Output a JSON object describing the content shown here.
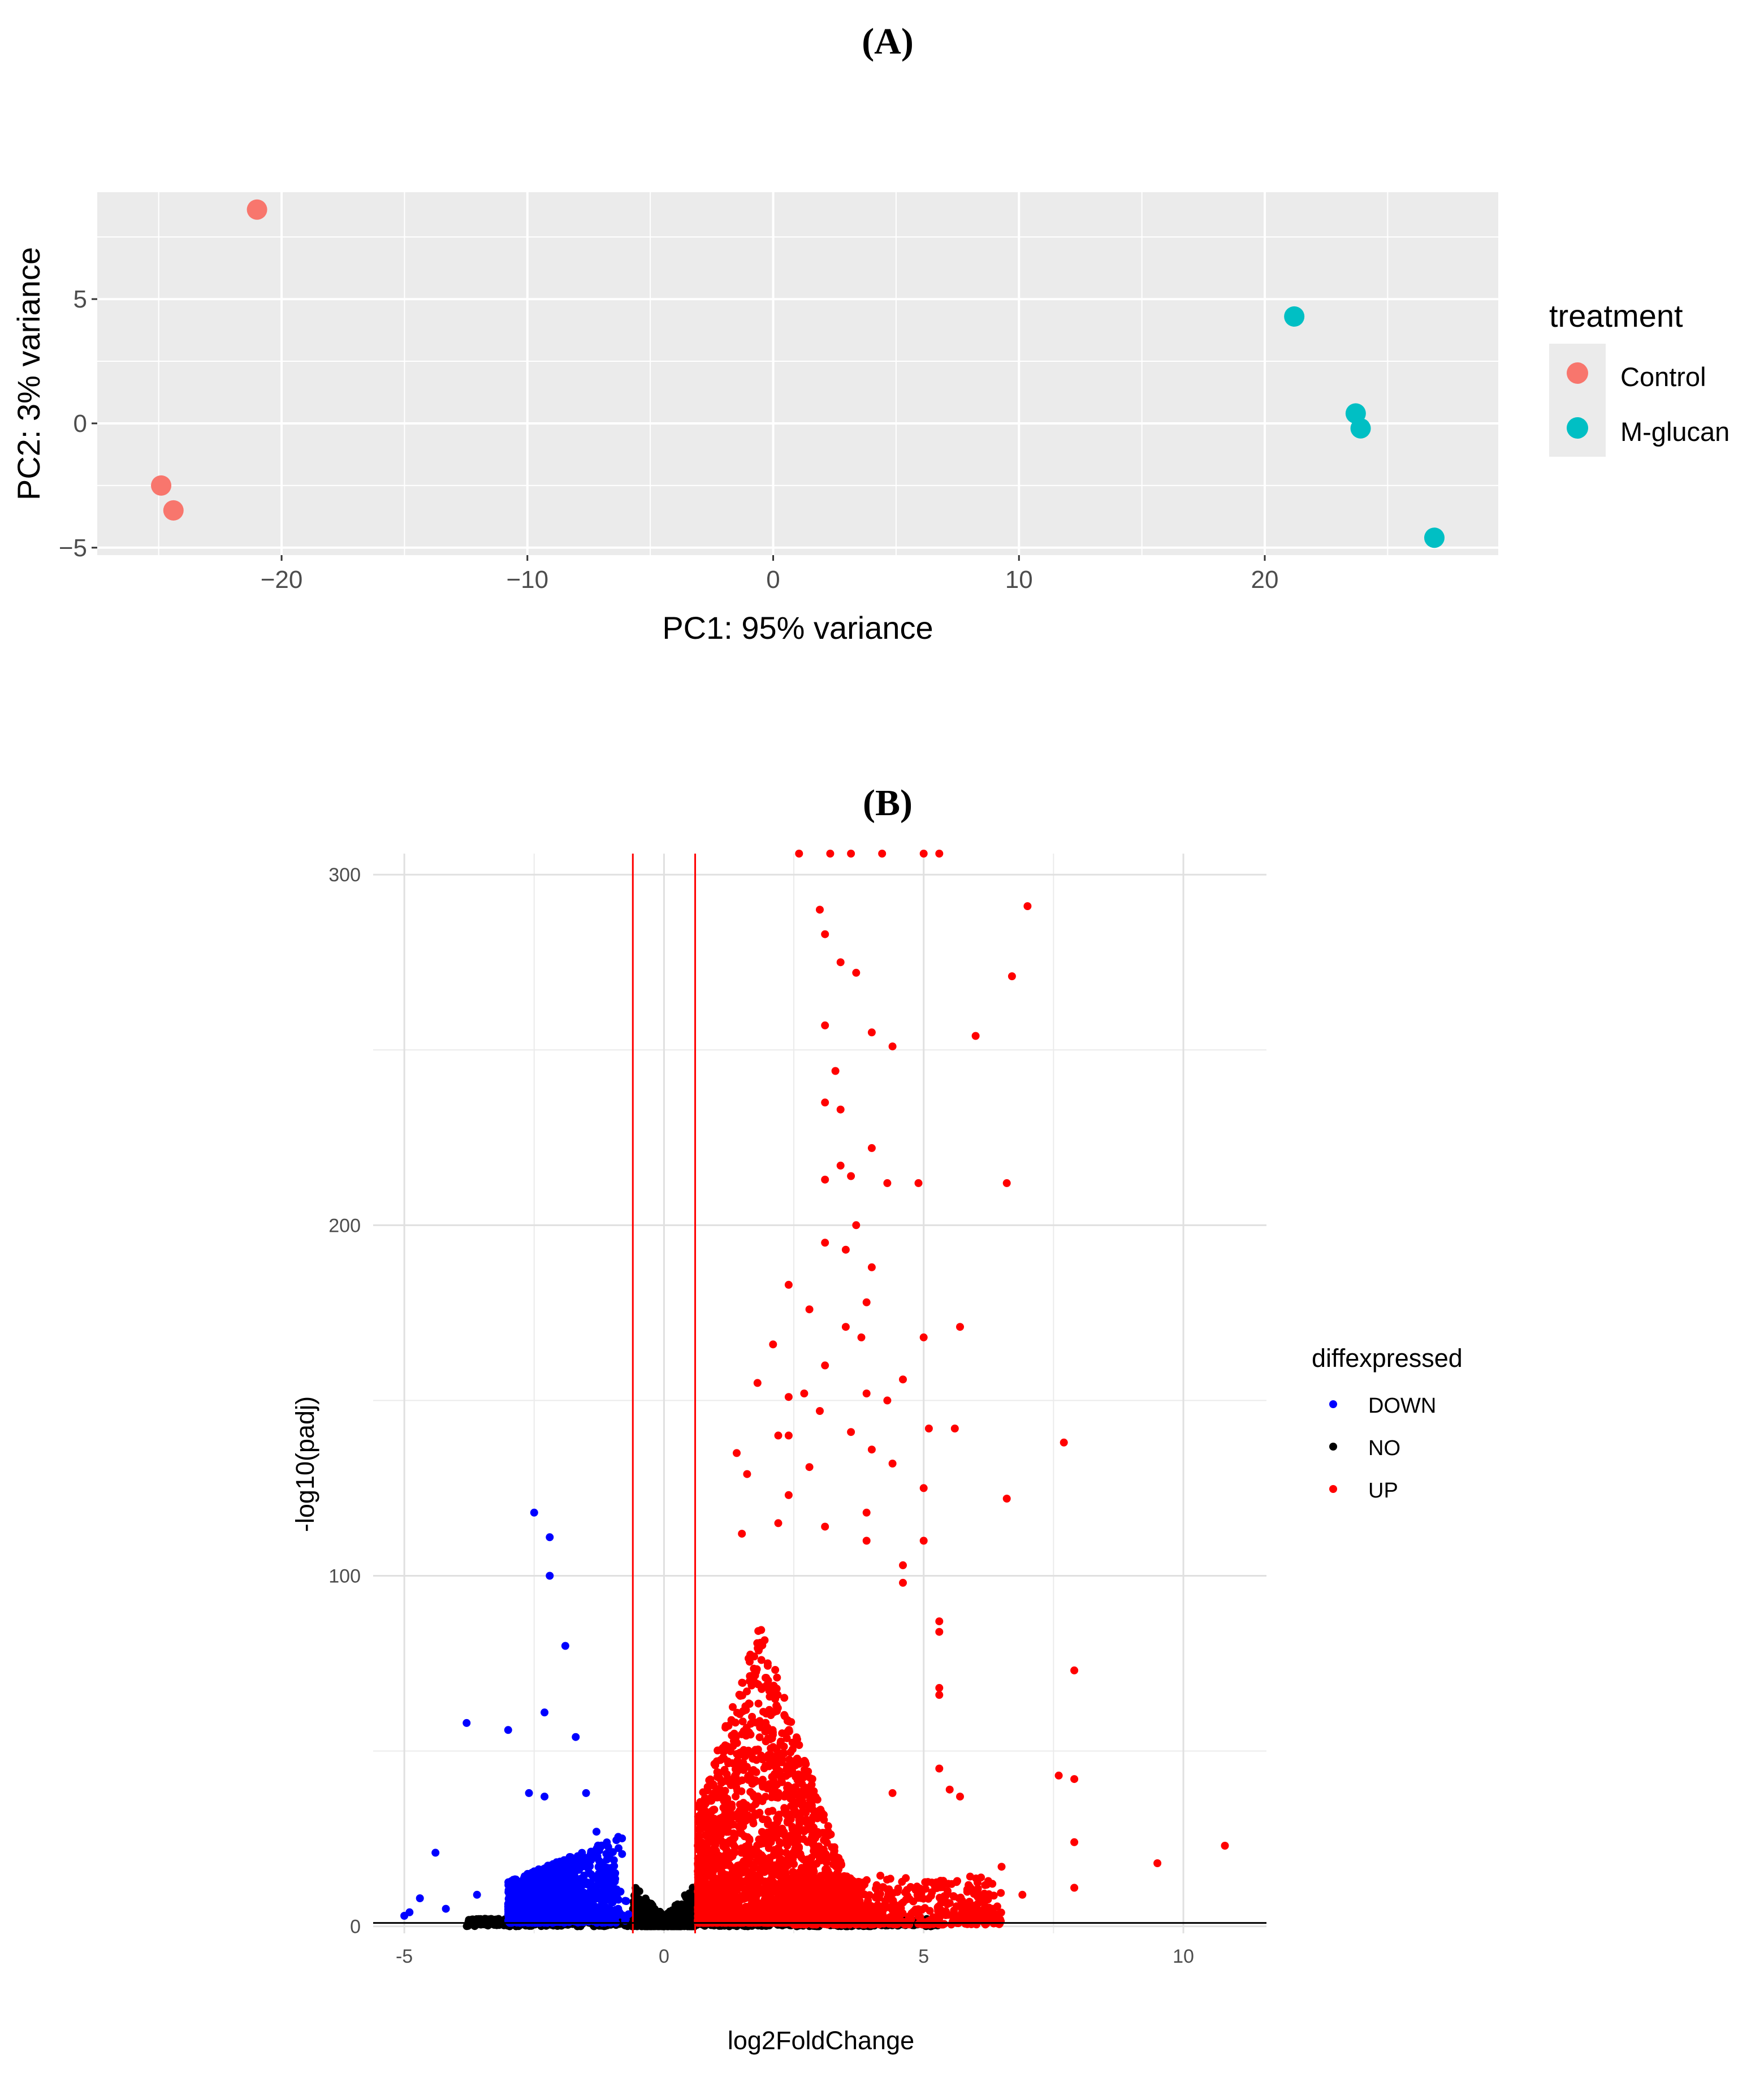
{
  "panels": {
    "a_label": "(A)",
    "b_label": "(B)"
  },
  "chart_data": [
    {
      "type": "scatter",
      "title": "",
      "xlabel": "PC1: 95% variance",
      "ylabel": "PC2: 3% variance",
      "xlim": [
        -27.5,
        29.5
      ],
      "ylim": [
        -5.3,
        9.3
      ],
      "xticks": [
        -20,
        -10,
        0,
        10,
        20
      ],
      "yticks": [
        -5,
        0,
        5
      ],
      "grid": true,
      "background": "#ebebeb",
      "legend": {
        "title": "treatment",
        "position": "right",
        "entries": [
          {
            "name": "Control",
            "color": "#f8766d"
          },
          {
            "name": "M-glucan",
            "color": "#00bfc4"
          }
        ]
      },
      "series": [
        {
          "name": "Control",
          "color": "#f8766d",
          "points": [
            [
              -21,
              8.6
            ],
            [
              -24.9,
              -2.5
            ],
            [
              -24.4,
              -3.5
            ]
          ]
        },
        {
          "name": "M-glucan",
          "color": "#00bfc4",
          "points": [
            [
              21.2,
              4.3
            ],
            [
              23.7,
              0.4
            ],
            [
              23.9,
              -0.2
            ],
            [
              26.9,
              -4.6
            ]
          ]
        }
      ]
    },
    {
      "type": "scatter",
      "title": "",
      "xlabel": "log2FoldChange",
      "ylabel": "-log10(padj)",
      "xlim": [
        -5.6,
        11.6
      ],
      "ylim": [
        -2,
        306
      ],
      "xticks": [
        -5,
        0,
        5,
        10
      ],
      "yticks": [
        0,
        100,
        200,
        300
      ],
      "grid": true,
      "background": "#ffffff",
      "thresholds": {
        "vlines": [
          -0.6,
          0.6
        ],
        "hline": 0,
        "vline_color": "#ff0000",
        "hline_color": "#000000"
      },
      "legend": {
        "title": "diffexpressed",
        "position": "right",
        "entries": [
          {
            "name": "DOWN",
            "color": "#0000ff"
          },
          {
            "name": "NO",
            "color": "#000000"
          },
          {
            "name": "UP",
            "color": "#ff0000"
          }
        ]
      },
      "series": [
        {
          "name": "DOWN",
          "color": "#0000ff",
          "points": [
            [
              -2.5,
              118
            ],
            [
              -2.2,
              111
            ],
            [
              -2.2,
              100
            ],
            [
              -1.9,
              80
            ],
            [
              -3.8,
              58
            ],
            [
              -3.0,
              56
            ],
            [
              -2.3,
              61
            ],
            [
              -1.7,
              54
            ],
            [
              -2.6,
              38
            ],
            [
              -2.3,
              37
            ],
            [
              -1.5,
              38
            ],
            [
              -1.3,
              27
            ],
            [
              -4.4,
              21
            ],
            [
              -4.7,
              8
            ],
            [
              -4.9,
              4
            ],
            [
              -5.0,
              3
            ],
            [
              -3.6,
              9
            ],
            [
              -4.2,
              5
            ]
          ],
          "cluster": {
            "x": [
              -3.0,
              -0.65
            ],
            "y_max": 26,
            "count": 1300,
            "seed": 11
          }
        },
        {
          "name": "NO",
          "color": "#000000",
          "cluster": {
            "x": [
              -0.6,
              0.6
            ],
            "y_max": 12,
            "count": 500,
            "seed": 5
          },
          "baseline": {
            "x": [
              -3.8,
              5.3
            ],
            "count": 900,
            "seed": 9
          }
        },
        {
          "name": "UP",
          "color": "#ff0000",
          "points": [
            [
              2.6,
              306
            ],
            [
              3.2,
              306
            ],
            [
              3.6,
              306
            ],
            [
              4.2,
              306
            ],
            [
              5.0,
              306
            ],
            [
              5.3,
              306
            ],
            [
              7.0,
              291
            ],
            [
              3.0,
              290
            ],
            [
              3.1,
              283
            ],
            [
              3.4,
              275
            ],
            [
              3.7,
              272
            ],
            [
              6.7,
              271
            ],
            [
              3.1,
              257
            ],
            [
              4.0,
              255
            ],
            [
              6.0,
              254
            ],
            [
              4.4,
              251
            ],
            [
              3.3,
              244
            ],
            [
              3.1,
              235
            ],
            [
              3.4,
              233
            ],
            [
              4.0,
              222
            ],
            [
              3.4,
              217
            ],
            [
              3.6,
              214
            ],
            [
              3.1,
              213
            ],
            [
              4.3,
              212
            ],
            [
              4.9,
              212
            ],
            [
              6.6,
              212
            ],
            [
              3.7,
              200
            ],
            [
              3.1,
              195
            ],
            [
              3.5,
              193
            ],
            [
              4.0,
              188
            ],
            [
              2.4,
              183
            ],
            [
              3.9,
              178
            ],
            [
              2.8,
              176
            ],
            [
              3.5,
              171
            ],
            [
              5.7,
              171
            ],
            [
              3.8,
              168
            ],
            [
              2.1,
              166
            ],
            [
              5.0,
              168
            ],
            [
              3.1,
              160
            ],
            [
              4.6,
              156
            ],
            [
              1.8,
              155
            ],
            [
              2.4,
              151
            ],
            [
              2.7,
              152
            ],
            [
              3.0,
              147
            ],
            [
              3.9,
              152
            ],
            [
              4.3,
              150
            ],
            [
              5.6,
              142
            ],
            [
              5.1,
              142
            ],
            [
              7.7,
              138
            ],
            [
              2.2,
              140
            ],
            [
              3.6,
              141
            ],
            [
              1.4,
              135
            ],
            [
              2.4,
              140
            ],
            [
              4.0,
              136
            ],
            [
              1.6,
              129
            ],
            [
              2.8,
              131
            ],
            [
              4.4,
              132
            ],
            [
              5.0,
              125
            ],
            [
              6.6,
              122
            ],
            [
              2.4,
              123
            ],
            [
              3.9,
              118
            ],
            [
              1.5,
              112
            ],
            [
              2.2,
              115
            ],
            [
              3.1,
              114
            ],
            [
              3.9,
              110
            ],
            [
              5.0,
              110
            ],
            [
              4.6,
              103
            ],
            [
              4.6,
              98
            ],
            [
              5.3,
              87
            ],
            [
              5.3,
              84
            ],
            [
              7.9,
              73
            ],
            [
              5.3,
              66
            ],
            [
              5.3,
              68
            ],
            [
              5.3,
              45
            ],
            [
              5.5,
              39
            ],
            [
              7.6,
              43
            ],
            [
              7.9,
              42
            ],
            [
              5.7,
              37
            ],
            [
              4.4,
              38
            ],
            [
              7.9,
              24
            ],
            [
              10.8,
              23
            ],
            [
              9.5,
              18
            ],
            [
              7.9,
              11
            ],
            [
              6.5,
              17
            ],
            [
              6.9,
              9
            ],
            [
              6.0,
              6
            ]
          ],
          "cluster": {
            "x": [
              0.65,
              3.8
            ],
            "y_max": 85,
            "count": 2600,
            "seed": 21
          },
          "tail": {
            "x": [
              2.5,
              6.5
            ],
            "y_max": 14,
            "count": 700,
            "seed": 33
          }
        }
      ]
    }
  ]
}
